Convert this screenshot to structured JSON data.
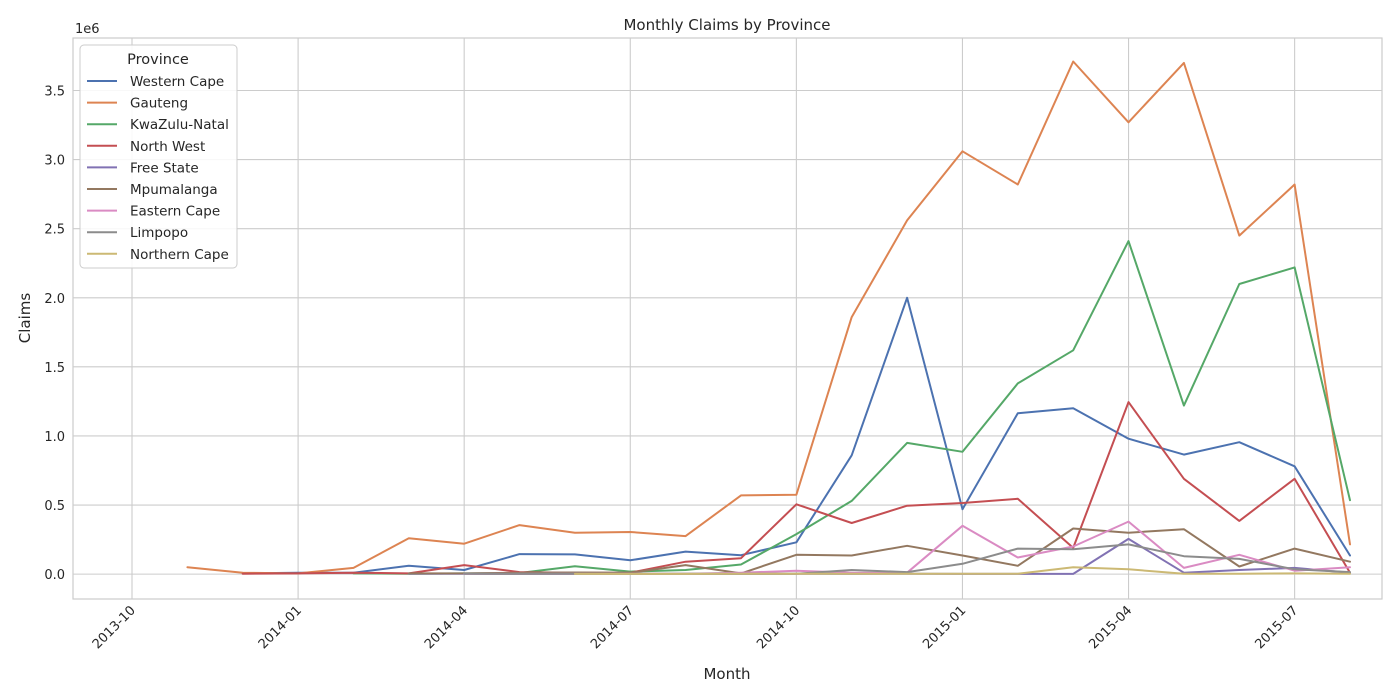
{
  "chart_data": {
    "type": "line",
    "title": "Monthly Claims by Province",
    "xlabel": "Month",
    "ylabel": "Claims",
    "y_multiplier_label": "1e6",
    "grid": true,
    "legend_title": "Province",
    "legend_position": "top-left",
    "x": [
      "2013-10",
      "2013-11",
      "2013-12",
      "2014-01",
      "2014-02",
      "2014-03",
      "2014-04",
      "2014-05",
      "2014-06",
      "2014-07",
      "2014-08",
      "2014-09",
      "2014-10",
      "2014-11",
      "2014-12",
      "2015-01",
      "2015-02",
      "2015-03",
      "2015-04",
      "2015-05",
      "2015-06",
      "2015-07",
      "2015-08"
    ],
    "x_ticks": [
      "2013-10",
      "2014-01",
      "2014-04",
      "2014-07",
      "2014-10",
      "2015-01",
      "2015-04",
      "2015-07"
    ],
    "y_ticks": [
      0.0,
      0.5,
      1.0,
      1.5,
      2.0,
      2.5,
      3.0,
      3.5
    ],
    "y_tick_labels": [
      "0.0",
      "0.5",
      "1.0",
      "1.5",
      "2.0",
      "2.5",
      "3.0",
      "3.5"
    ],
    "ylim": [
      -0.18,
      3.88
    ],
    "series": [
      {
        "name": "Western Cape",
        "color": "#4c72b0",
        "values": [
          0,
          null,
          0.005,
          0.01,
          0.01,
          0.06,
          0.03,
          0.145,
          0.143,
          0.1,
          0.163,
          0.137,
          0.23,
          0.86,
          2.0,
          0.47,
          1.165,
          1.2,
          0.98,
          0.865,
          0.955,
          0.78,
          0.135
        ]
      },
      {
        "name": "Gauteng",
        "color": "#dd8452",
        "values": [
          null,
          0.05,
          0.01,
          0.005,
          0.045,
          0.26,
          0.22,
          0.355,
          0.3,
          0.305,
          0.275,
          0.57,
          0.575,
          1.86,
          2.56,
          3.06,
          2.82,
          3.71,
          3.27,
          3.7,
          2.45,
          2.82,
          0.215
        ]
      },
      {
        "name": "KwaZulu-Natal",
        "color": "#55a868",
        "values": [
          null,
          null,
          null,
          null,
          0.005,
          0.003,
          0.005,
          0.008,
          0.057,
          0.018,
          0.03,
          0.07,
          0.29,
          0.53,
          0.95,
          0.885,
          1.38,
          1.62,
          2.41,
          1.22,
          2.1,
          2.22,
          0.535
        ]
      },
      {
        "name": "North West",
        "color": "#c44e52",
        "values": [
          null,
          null,
          0.003,
          0.005,
          0.01,
          0.005,
          0.065,
          0.015,
          0.01,
          0.01,
          0.09,
          0.115,
          0.505,
          0.37,
          0.495,
          0.515,
          0.545,
          0.19,
          1.245,
          0.69,
          0.385,
          0.69,
          0.01
        ]
      },
      {
        "name": "Free State",
        "color": "#8172b3",
        "values": [
          null,
          null,
          null,
          null,
          null,
          0.003,
          0.003,
          0.002,
          0.002,
          0.002,
          0.002,
          0.002,
          0.003,
          0.002,
          0.003,
          0.002,
          0.002,
          0.002,
          0.255,
          0.01,
          0.03,
          0.045,
          0.01
        ]
      },
      {
        "name": "Mpumalanga",
        "color": "#937860",
        "values": [
          null,
          null,
          null,
          null,
          null,
          0.005,
          0.005,
          0.01,
          0.012,
          0.01,
          0.065,
          0.005,
          0.14,
          0.135,
          0.205,
          0.135,
          0.06,
          0.33,
          0.3,
          0.325,
          0.055,
          0.185,
          0.09
        ]
      },
      {
        "name": "Eastern Cape",
        "color": "#da8bc3",
        "values": [
          null,
          null,
          null,
          null,
          null,
          null,
          0.002,
          0.002,
          0.003,
          0.003,
          0.003,
          0.01,
          0.025,
          0.01,
          0.01,
          0.35,
          0.12,
          0.2,
          0.38,
          0.045,
          0.14,
          0.025,
          0.05
        ]
      },
      {
        "name": "Limpopo",
        "color": "#8c8c8c",
        "values": [
          null,
          null,
          null,
          null,
          null,
          null,
          0.003,
          0.002,
          0.003,
          0.002,
          0.003,
          0.003,
          0.003,
          0.03,
          0.015,
          0.075,
          0.185,
          0.18,
          0.215,
          0.13,
          0.11,
          0.035,
          0.015
        ]
      },
      {
        "name": "Northern Cape",
        "color": "#ccb974",
        "values": [
          null,
          null,
          null,
          null,
          null,
          null,
          null,
          null,
          0.002,
          0.002,
          0.002,
          0.003,
          0.003,
          0.003,
          0.003,
          0.003,
          0.003,
          0.05,
          0.035,
          0.003,
          0.003,
          0.005,
          0.003
        ]
      }
    ]
  }
}
